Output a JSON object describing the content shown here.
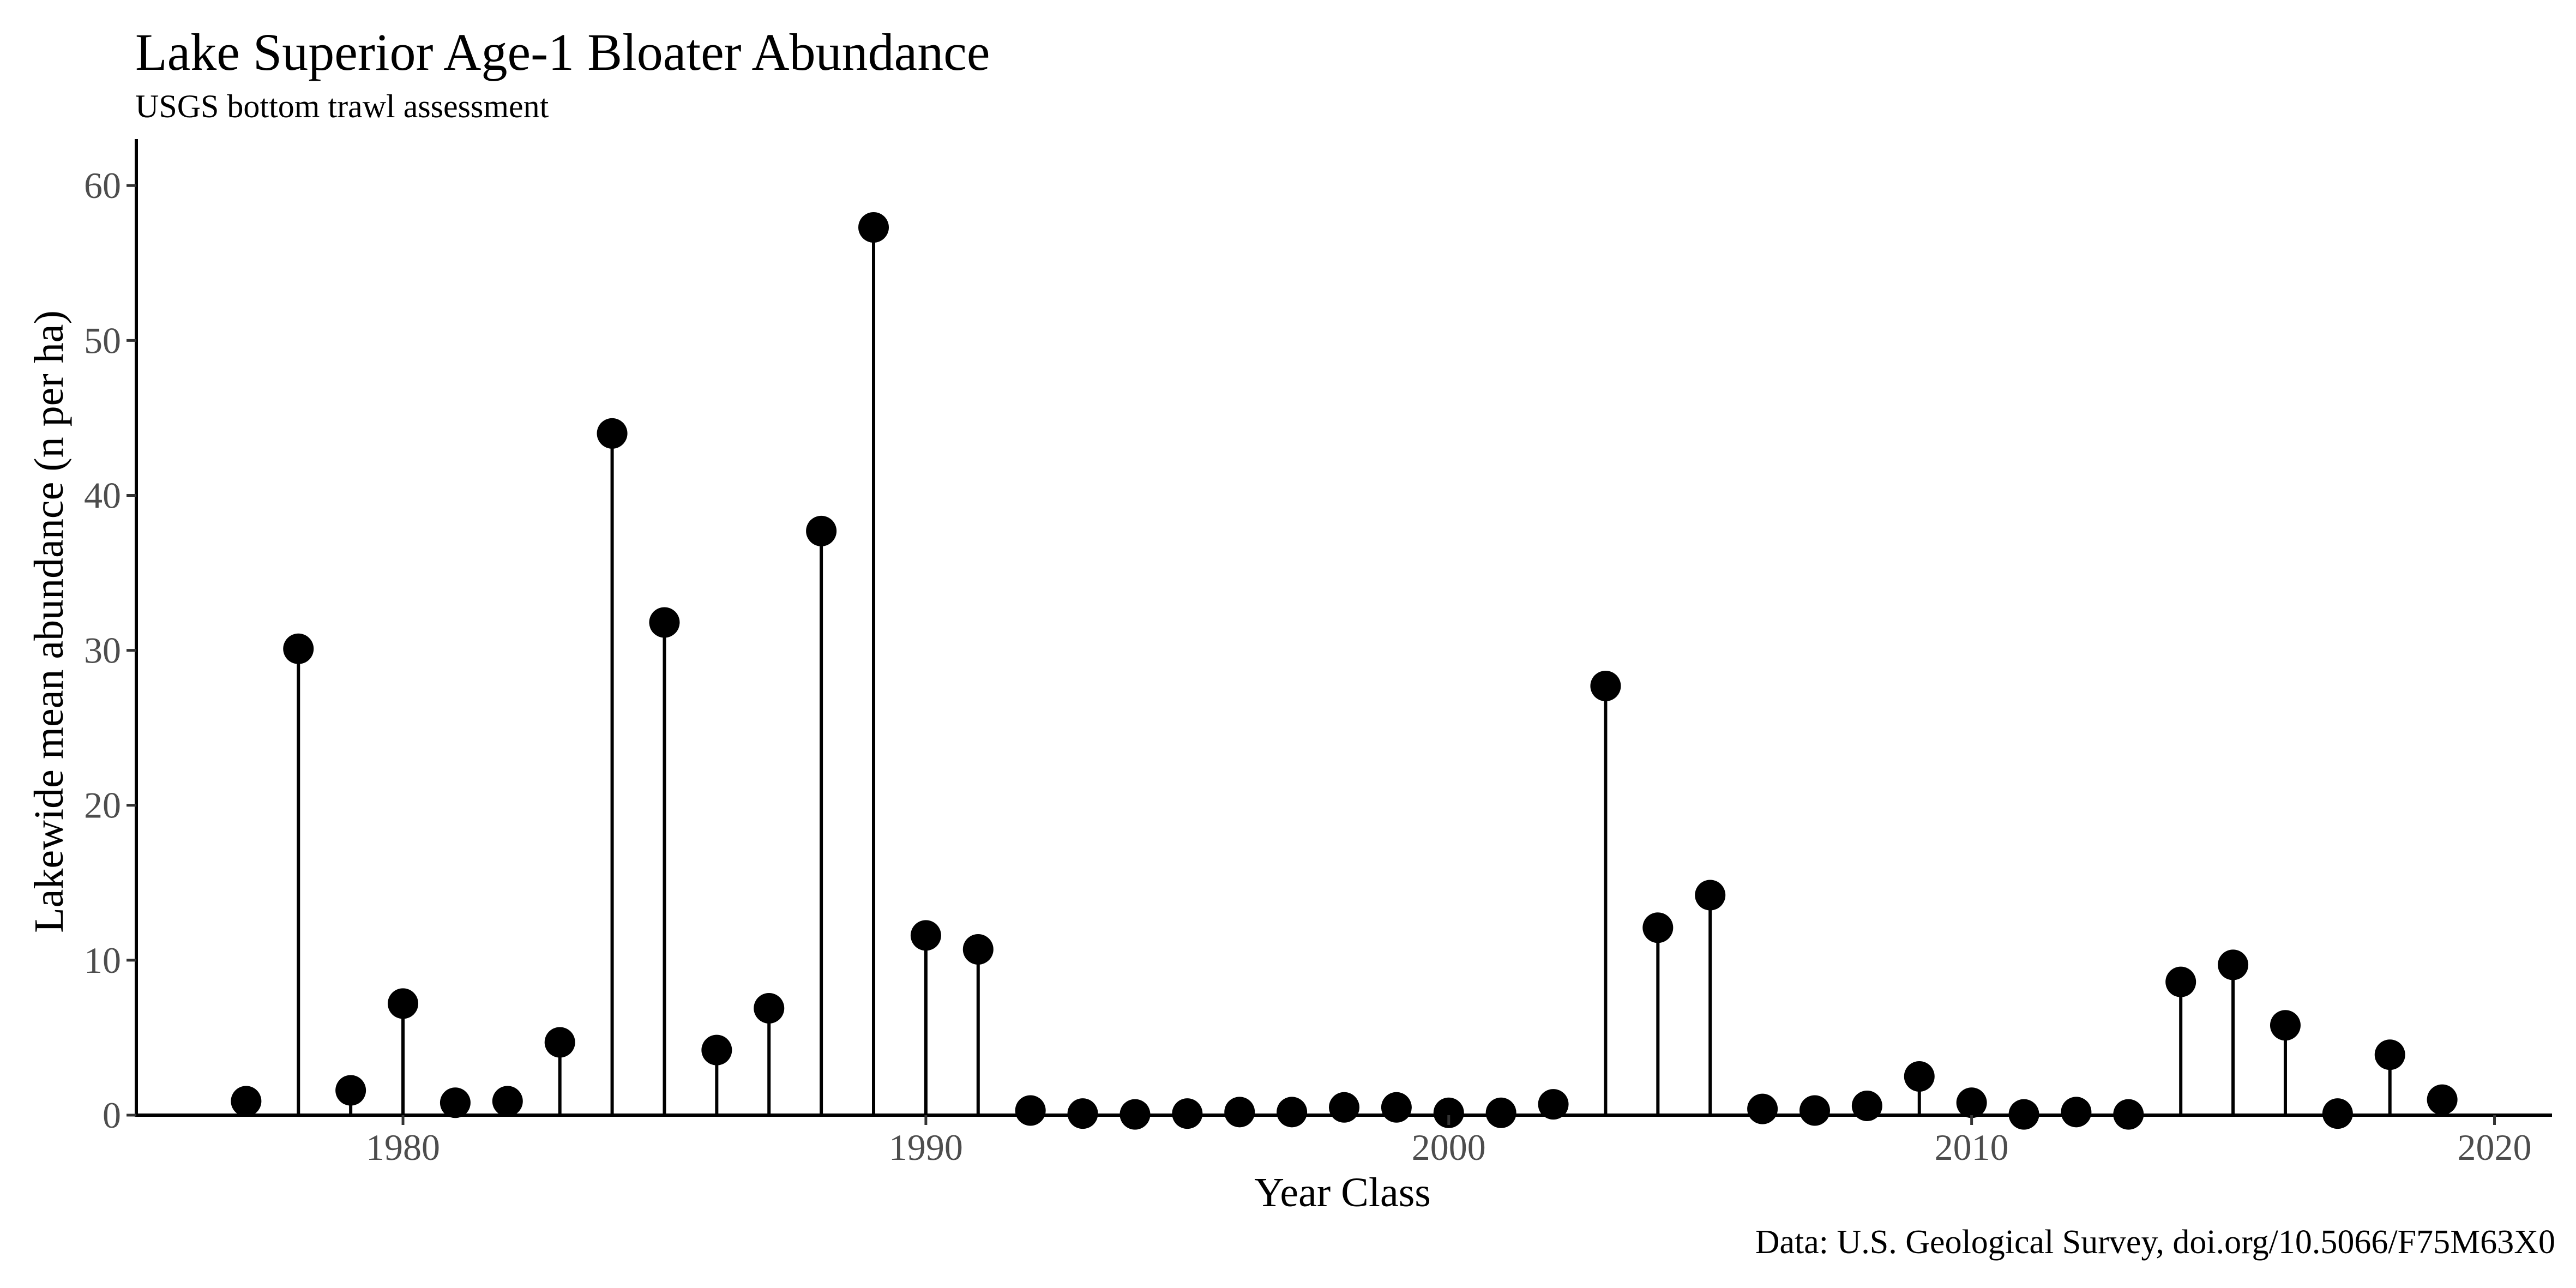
{
  "chart_data": {
    "type": "lollipop",
    "title": "Lake Superior Age-1 Bloater Abundance",
    "subtitle": "USGS bottom trawl assessment",
    "caption": "Data: U.S. Geological Survey, doi.org/10.5066/F75M63X0",
    "xlabel": "Year Class",
    "ylabel": "Lakewide mean abundance (n per ha)",
    "xlim": [
      1974.9,
      2021.1
    ],
    "ylim": [
      0,
      63
    ],
    "x_ticks": [
      1980,
      1990,
      2000,
      2010,
      2020
    ],
    "y_ticks": [
      0,
      10,
      20,
      30,
      40,
      50,
      60
    ],
    "grid": false,
    "legend": "none",
    "colors": {
      "point": "#000000",
      "stem": "#000000",
      "tick_label": "#4d4d4d"
    },
    "x": [
      1977,
      1978,
      1979,
      1980,
      1981,
      1982,
      1983,
      1984,
      1985,
      1986,
      1987,
      1988,
      1989,
      1990,
      1991,
      1992,
      1993,
      1994,
      1995,
      1996,
      1997,
      1998,
      1999,
      2000,
      2001,
      2002,
      2003,
      2004,
      2005,
      2006,
      2007,
      2008,
      2009,
      2010,
      2011,
      2012,
      2013,
      2014,
      2015,
      2016,
      2017,
      2018,
      2019
    ],
    "y": [
      0.9,
      30.1,
      1.6,
      7.2,
      0.8,
      0.9,
      4.7,
      44.0,
      31.8,
      4.2,
      6.9,
      37.7,
      57.3,
      11.6,
      10.7,
      0.3,
      0.1,
      0.05,
      0.1,
      0.2,
      0.2,
      0.5,
      0.5,
      0.15,
      0.15,
      0.7,
      27.7,
      12.1,
      14.2,
      0.4,
      0.3,
      0.6,
      2.5,
      0.8,
      0.05,
      0.2,
      0.05,
      8.6,
      9.7,
      5.8,
      0.1,
      3.9,
      1.0
    ]
  }
}
